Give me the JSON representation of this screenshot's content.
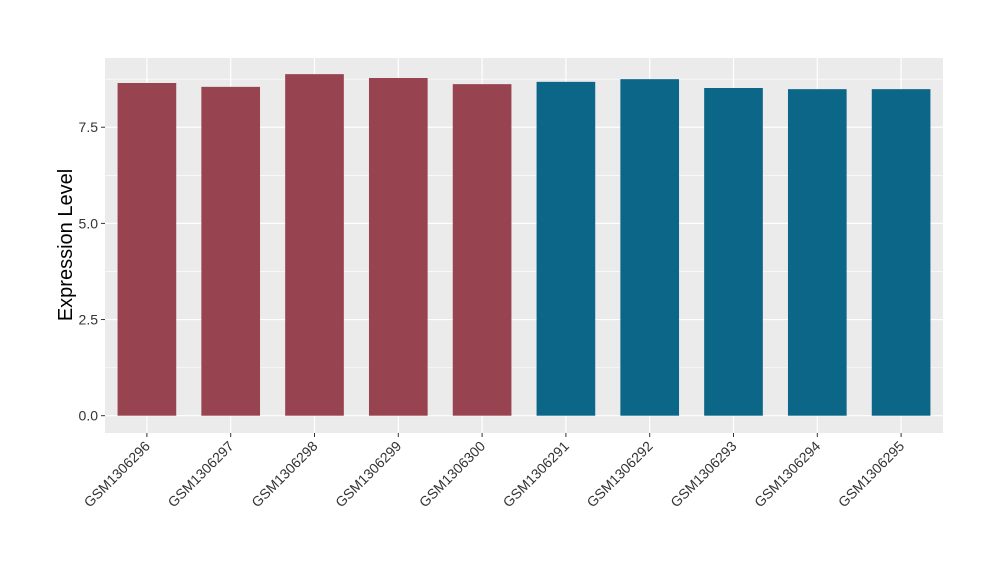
{
  "chart_data": {
    "type": "bar",
    "title": "",
    "xlabel": "",
    "ylabel": "Expression Level",
    "categories": [
      "GSM1306296",
      "GSM1306297",
      "GSM1306298",
      "GSM1306299",
      "GSM1306300",
      "GSM1306291",
      "GSM1306292",
      "GSM1306293",
      "GSM1306294",
      "GSM1306295"
    ],
    "values": [
      8.65,
      8.55,
      8.88,
      8.78,
      8.62,
      8.68,
      8.75,
      8.52,
      8.49,
      8.49
    ],
    "bar_colors": [
      "#984350",
      "#984350",
      "#984350",
      "#984350",
      "#984350",
      "#0c6688",
      "#0c6688",
      "#0c6688",
      "#0c6688",
      "#0c6688"
    ],
    "ylim": [
      -0.45,
      9.3
    ],
    "yticks": [
      0,
      2.5,
      5,
      7.5
    ],
    "ytick_labels": [
      "0.0",
      "2.5",
      "5.0",
      "7.5"
    ],
    "grid": true,
    "legend": "none",
    "panel_background": "#ebebeb",
    "grid_color": "#ffffff"
  }
}
